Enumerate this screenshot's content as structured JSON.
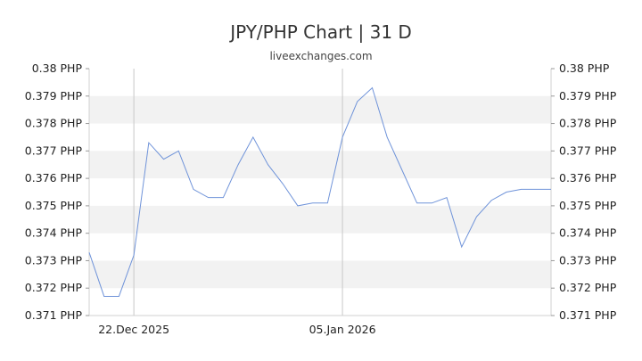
{
  "chart_data": {
    "type": "line",
    "title": "JPY/PHP Chart | 31 D",
    "subtitle": "liveexchanges.com",
    "xlabel": "",
    "ylabel": "",
    "ylim": [
      0.371,
      0.38
    ],
    "y_ticks": [
      "0.38 PHP",
      "0.379 PHP",
      "0.378 PHP",
      "0.377 PHP",
      "0.376 PHP",
      "0.375 PHP",
      "0.374 PHP",
      "0.373 PHP",
      "0.372 PHP",
      "0.371 PHP"
    ],
    "y_tick_values": [
      0.38,
      0.379,
      0.378,
      0.377,
      0.376,
      0.375,
      0.374,
      0.373,
      0.372,
      0.371
    ],
    "x_ticks": [
      {
        "label": "22.Dec 2025",
        "index": 3
      },
      {
        "label": "05.Jan 2026",
        "index": 17
      }
    ],
    "grid": true,
    "band_color": "#f2f2f2",
    "line_color": "#6f93d9",
    "series": [
      {
        "values": [
          0.3733,
          0.3717,
          0.3717,
          0.3732,
          0.3773,
          0.3767,
          0.377,
          0.3756,
          0.3753,
          0.3753,
          0.3765,
          0.3775,
          0.3765,
          0.3758,
          0.375,
          0.3751,
          0.3751,
          0.3775,
          0.3788,
          0.3793,
          0.3775,
          0.3763,
          0.3751,
          0.3751,
          0.3753,
          0.3735,
          0.3746,
          0.3752,
          0.3755,
          0.3756,
          0.3756,
          0.3756
        ]
      }
    ]
  }
}
